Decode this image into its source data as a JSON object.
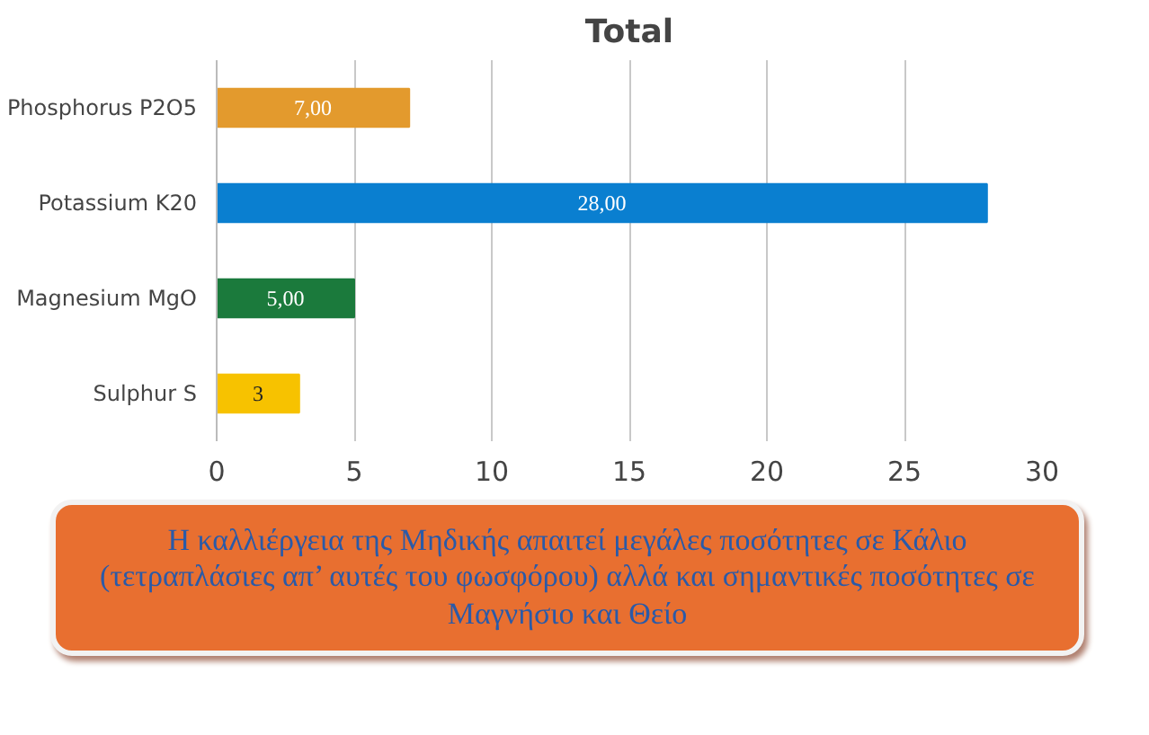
{
  "chart_data": {
    "type": "bar",
    "orientation": "horizontal",
    "title": "Total",
    "categories": [
      "Phosphorus P2O5",
      "Potassium K20",
      "Magnesium MgO",
      "Sulphur S"
    ],
    "values": [
      7,
      28,
      5,
      3
    ],
    "colors": [
      "#e39a2d",
      "#0a7fd0",
      "#1b7a3c",
      "#f7c200"
    ],
    "value_labels": [
      "7,00",
      "28,00",
      "5,00",
      "3"
    ],
    "xlim": [
      0,
      30
    ],
    "xticks": [
      0,
      5,
      10,
      15,
      20,
      25,
      30
    ],
    "grid": "x",
    "annotations": [
      "Η καλλιέργεια της Μηδικής απαιτεί μεγάλες ποσότητες σε Κάλιο (τετραπλάσιες απ’ αυτές του φωσφόρου) αλλά και σημαντικές ποσότητες σε  Μαγνήσιο και Θείο"
    ]
  }
}
